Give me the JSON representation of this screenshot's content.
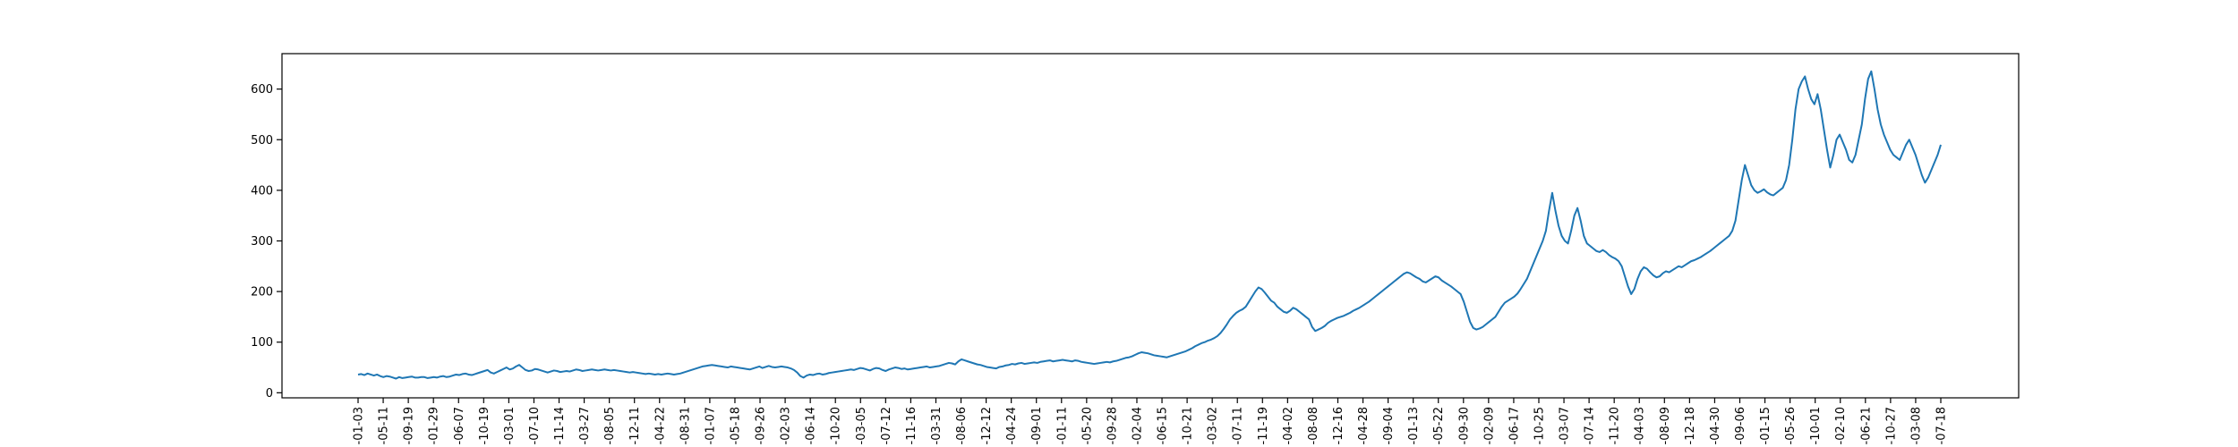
{
  "chart_data": {
    "type": "line",
    "title": "",
    "xlabel": "",
    "ylabel": "",
    "ylim": [
      -10,
      670
    ],
    "yticks": [
      0,
      100,
      200,
      300,
      400,
      500,
      600
    ],
    "grid": false,
    "line_color": "#1f77b4",
    "xtick_labels": [
      "-01-03",
      "-05-11",
      "-09-19",
      "-01-29",
      "-06-07",
      "-10-19",
      "-03-01",
      "-07-10",
      "-11-14",
      "-03-27",
      "-08-05",
      "-12-11",
      "-04-22",
      "-08-31",
      "-01-07",
      "-05-18",
      "-09-26",
      "-02-03",
      "-06-14",
      "-10-20",
      "-03-05",
      "-07-12",
      "-11-16",
      "-03-31",
      "-08-06",
      "-12-12",
      "-04-24",
      "-09-01",
      "-01-11",
      "-05-20",
      "-09-28",
      "-02-04",
      "-06-15",
      "-10-21",
      "-03-02",
      "-07-11",
      "-11-19",
      "-04-02",
      "-08-08",
      "-12-16",
      "-04-28",
      "-09-04",
      "-01-13",
      "-05-22",
      "-09-30",
      "-02-09",
      "-06-17",
      "-10-25",
      "-03-07",
      "-07-14",
      "-11-20",
      "-04-03",
      "-08-09",
      "-12-18",
      "-04-30",
      "-09-06",
      "-01-15",
      "-05-26",
      "-10-01",
      "-02-10",
      "-06-21",
      "-10-27",
      "-03-08",
      "-07-18"
    ],
    "series": [
      {
        "values": [
          36,
          37,
          35,
          38,
          36,
          34,
          36,
          33,
          31,
          33,
          32,
          30,
          28,
          31,
          29,
          30,
          31,
          32,
          30,
          30,
          31,
          31,
          29,
          30,
          31,
          30,
          32,
          33,
          31,
          32,
          34,
          36,
          35,
          37,
          38,
          36,
          35,
          37,
          39,
          41,
          43,
          45,
          40,
          38,
          41,
          44,
          47,
          50,
          46,
          48,
          52,
          55,
          50,
          45,
          43,
          44,
          47,
          46,
          44,
          42,
          40,
          42,
          44,
          43,
          41,
          42,
          43,
          42,
          44,
          46,
          45,
          43,
          44,
          45,
          46,
          45,
          44,
          45,
          46,
          45,
          44,
          45,
          44,
          43,
          42,
          41,
          40,
          41,
          40,
          39,
          38,
          37,
          38,
          37,
          36,
          37,
          36,
          37,
          38,
          37,
          36,
          37,
          38,
          40,
          42,
          44,
          46,
          48,
          50,
          52,
          53,
          54,
          55,
          54,
          53,
          52,
          51,
          50,
          52,
          51,
          50,
          49,
          48,
          47,
          46,
          48,
          50,
          52,
          49,
          51,
          53,
          51,
          50,
          51,
          52,
          51,
          50,
          48,
          45,
          40,
          33,
          30,
          34,
          36,
          35,
          37,
          38,
          36,
          37,
          39,
          40,
          41,
          42,
          43,
          44,
          45,
          46,
          45,
          47,
          49,
          48,
          46,
          44,
          47,
          49,
          48,
          45,
          43,
          46,
          48,
          50,
          49,
          47,
          48,
          46,
          47,
          48,
          49,
          50,
          51,
          52,
          50,
          51,
          52,
          53,
          55,
          57,
          59,
          58,
          56,
          62,
          66,
          64,
          62,
          60,
          58,
          56,
          55,
          53,
          51,
          50,
          49,
          48,
          51,
          52,
          54,
          55,
          57,
          56,
          58,
          59,
          57,
          58,
          59,
          60,
          59,
          61,
          62,
          63,
          64,
          62,
          63,
          64,
          65,
          64,
          63,
          62,
          64,
          63,
          61,
          60,
          59,
          58,
          57,
          58,
          59,
          60,
          61,
          60,
          62,
          63,
          65,
          67,
          69,
          70,
          72,
          75,
          78,
          80,
          79,
          78,
          76,
          74,
          73,
          72,
          71,
          70,
          72,
          74,
          76,
          78,
          80,
          82,
          85,
          88,
          92,
          95,
          98,
          100,
          103,
          105,
          108,
          112,
          118,
          126,
          135,
          145,
          152,
          158,
          162,
          165,
          170,
          180,
          190,
          200,
          208,
          205,
          198,
          190,
          182,
          178,
          170,
          165,
          160,
          158,
          162,
          168,
          165,
          160,
          155,
          150,
          145,
          130,
          122,
          125,
          128,
          132,
          138,
          142,
          145,
          148,
          150,
          152,
          155,
          158,
          162,
          165,
          168,
          172,
          176,
          180,
          185,
          190,
          195,
          200,
          205,
          210,
          215,
          220,
          225,
          230,
          235,
          238,
          236,
          232,
          228,
          225,
          220,
          218,
          222,
          226,
          230,
          228,
          222,
          218,
          214,
          210,
          205,
          200,
          195,
          180,
          160,
          140,
          128,
          125,
          127,
          130,
          135,
          140,
          145,
          150,
          160,
          170,
          178,
          182,
          186,
          190,
          196,
          205,
          215,
          225,
          240,
          255,
          270,
          285,
          300,
          320,
          360,
          395,
          360,
          330,
          310,
          300,
          295,
          320,
          350,
          365,
          340,
          310,
          295,
          290,
          285,
          280,
          278,
          282,
          278,
          272,
          268,
          265,
          260,
          250,
          230,
          210,
          195,
          205,
          225,
          240,
          248,
          245,
          238,
          232,
          228,
          230,
          236,
          240,
          238,
          242,
          246,
          250,
          248,
          252,
          256,
          260,
          262,
          265,
          268,
          272,
          276,
          280,
          285,
          290,
          295,
          300,
          305,
          310,
          320,
          340,
          380,
          420,
          450,
          430,
          410,
          400,
          395,
          398,
          402,
          396,
          392,
          390,
          395,
          400,
          405,
          420,
          450,
          500,
          560,
          600,
          615,
          625,
          600,
          580,
          570,
          590,
          560,
          520,
          480,
          445,
          470,
          500,
          510,
          495,
          480,
          460,
          455,
          470,
          500,
          530,
          580,
          620,
          635,
          600,
          560,
          530,
          510,
          495,
          480,
          470,
          465,
          460,
          475,
          490,
          500,
          485,
          470,
          450,
          430,
          415,
          425,
          440,
          455,
          470,
          490
        ]
      }
    ]
  }
}
